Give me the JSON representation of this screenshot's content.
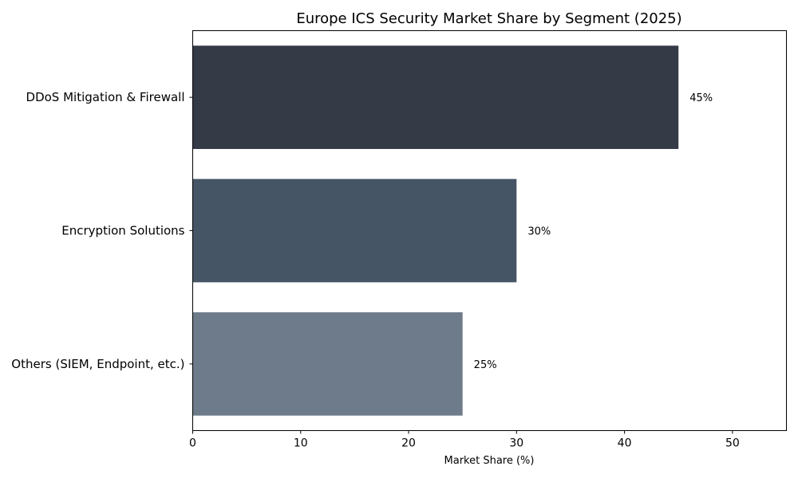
{
  "chart_data": {
    "type": "bar",
    "orientation": "horizontal",
    "title": "Europe ICS Security Market Share by Segment (2025)",
    "xlabel": "Market Share (%)",
    "ylabel": "",
    "categories": [
      "DDoS Mitigation & Firewall",
      "Encryption Solutions",
      "Others (SIEM, Endpoint, etc.)"
    ],
    "values": [
      45,
      30,
      25
    ],
    "data_labels": [
      "45%",
      "30%",
      "25%"
    ],
    "colors": [
      "#343a46",
      "#465566",
      "#6e7b8a"
    ],
    "xlim": [
      0,
      55
    ],
    "xticks": [
      0,
      10,
      20,
      30,
      40,
      50
    ],
    "xtick_labels": [
      "0",
      "10",
      "20",
      "30",
      "40",
      "50"
    ],
    "grid": false,
    "legend": "none"
  }
}
